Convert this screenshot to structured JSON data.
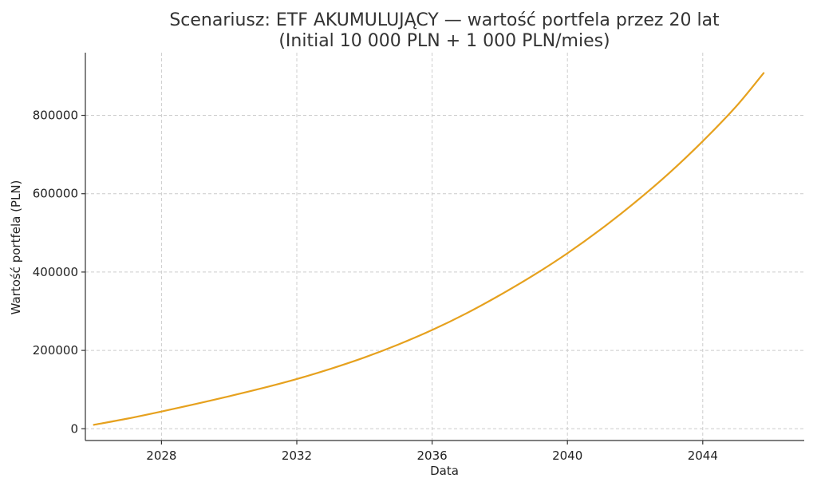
{
  "chart_data": {
    "type": "line",
    "title": "Scenariusz: ETF AKUMULUJĄCY — wartość portfela przez 20 lat",
    "subtitle": "(Initial 10 000 PLN + 1 000 PLN/mies)",
    "xlabel": "Data",
    "ylabel": "Wartość portfela (PLN)",
    "x_ticks": [
      2028,
      2032,
      2036,
      2040,
      2044
    ],
    "y_ticks": [
      0,
      200000,
      400000,
      600000,
      800000
    ],
    "xlim": [
      2025.75,
      2047.0
    ],
    "ylim": [
      -30000,
      960000
    ],
    "grid": true,
    "series": [
      {
        "color": "#e6a11e",
        "x": [
          2026,
          2027,
          2028,
          2029,
          2030,
          2031,
          2032,
          2033,
          2034,
          2035,
          2036,
          2037,
          2038,
          2039,
          2040,
          2041,
          2042,
          2043,
          2044,
          2045,
          2045.8
        ],
        "values": [
          10000,
          26000,
          44000,
          63000,
          83000,
          104000,
          127000,
          153000,
          182000,
          215000,
          252000,
          294000,
          341000,
          392000,
          448000,
          510000,
          578000,
          652000,
          734000,
          824000,
          908000
        ]
      }
    ]
  }
}
